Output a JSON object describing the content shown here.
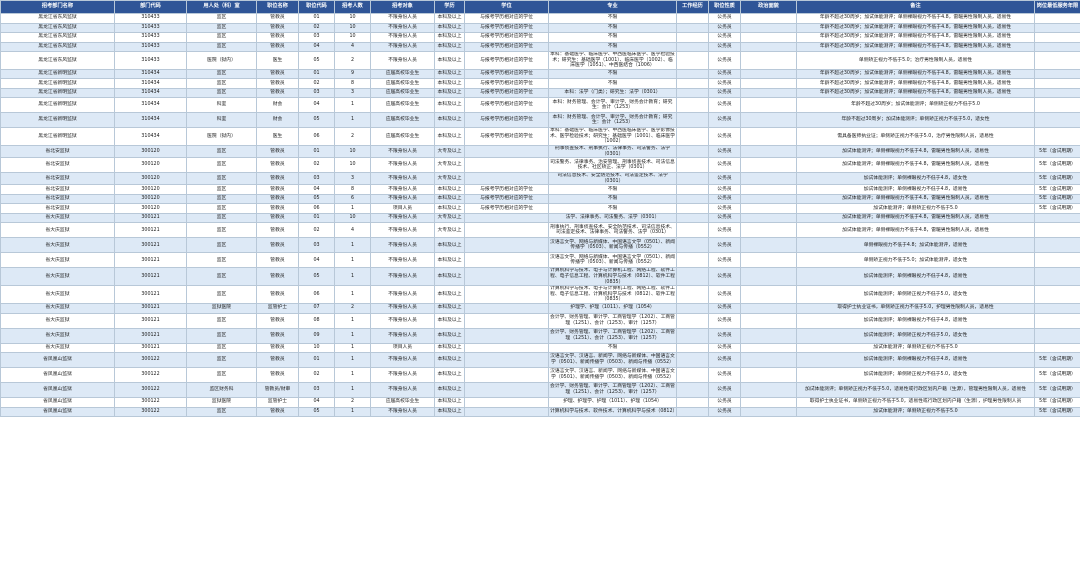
{
  "columns": [
    "招考部门名称",
    "部门代码",
    "用人处（科）室",
    "职位名称",
    "职位代码",
    "招考人数",
    "招考对象",
    "学历",
    "学位",
    "专业",
    "工作经历",
    "职位性质",
    "政治面貌",
    "备注",
    "岗位最低服务年限"
  ],
  "rows": [
    [
      "黑龙江省东风监狱",
      "310433",
      "监区",
      "管教员",
      "01",
      "10",
      "不限身份人员",
      "本科及以上",
      "与报考学历相对应的学位",
      "不限",
      "",
      "公务员",
      "",
      "年龄不超过30周岁；加试体能测评；单侧裸眼视力不低于4.8，雷暖男性限制人员，适易性",
      ""
    ],
    [
      "黑龙江省东风监狱",
      "310433",
      "监区",
      "管教员",
      "02",
      "10",
      "不限身份人员",
      "本科及以上",
      "与报考学历相对应的学位",
      "不限",
      "",
      "公务员",
      "",
      "年龄不超过30周岁；加试体能测评；单侧裸眼视力不低于4.8，雷暖男性限制人员，适易性",
      ""
    ],
    [
      "黑龙江省东风监狱",
      "310433",
      "监区",
      "管教员",
      "03",
      "10",
      "不限身份人员",
      "本科及以上",
      "与报考学历相对应的学位",
      "不限",
      "",
      "公务员",
      "",
      "年龄不超过30周岁；加试体能测评；单侧裸眼视力不低于4.8，雷暖男性限制人员，适易性",
      ""
    ],
    [
      "黑龙江省东风监狱",
      "310433",
      "监区",
      "管教员",
      "04",
      "4",
      "不限身份人员",
      "本科及以上",
      "与报考学历相对应的学位",
      "不限",
      "",
      "公务员",
      "",
      "年龄不超过30周岁；加试体能测评；单侧裸眼视力不低于4.8，雷暖男性限制人员，适易性",
      ""
    ],
    [
      "黑龙江省东风监狱",
      "310433",
      "医院（狱内）",
      "医生",
      "05",
      "2",
      "不限身份人员",
      "本科及以上",
      "与报考学历相对应的学位",
      "本科：基础医学、临床医学、中西医临床医学、医学检验技术；研究生：基础医学（1001）、临床医学（1002）、临床医学（1051）、中西医结合（1006）",
      "",
      "公务员",
      "",
      "单侧矫正视力不低于5.0；治疗男性限制人员，适易性",
      ""
    ],
    [
      "黑龙江省新明监狱",
      "310434",
      "监区",
      "管教员",
      "01",
      "9",
      "应届高校毕业生",
      "本科及以上",
      "与报考学历相对应的学位",
      "不限",
      "",
      "公务员",
      "",
      "年龄不超过30周岁；加试体能测评；单侧裸眼视力不低于4.8，雷暖男性限制人员，适易性",
      ""
    ],
    [
      "黑龙江省新明监狱",
      "310434",
      "监区",
      "管教员",
      "02",
      "8",
      "应届高校毕业生",
      "本科及以上",
      "与报考学历相对应的学位",
      "不限",
      "",
      "公务员",
      "",
      "年龄不超过30周岁；加试体能测评；单侧裸眼视力不低于4.8，雷暖男性限制人员，适易性",
      ""
    ],
    [
      "黑龙江省新明监狱",
      "310434",
      "监区",
      "管教员",
      "03",
      "3",
      "应届高校毕业生",
      "本科及以上",
      "与报考学历相对应的学位",
      "本科：法学（门类）；研究生：法学（0301）",
      "",
      "公务员",
      "",
      "年龄不超过30周岁；加试体能测评；单侧裸眼视力不低于4.8，雷暖男性限制人员，适易性",
      ""
    ],
    [
      "黑龙江省新明监狱",
      "310434",
      "科室",
      "财会",
      "04",
      "1",
      "应届高校毕业生",
      "本科及以上",
      "与报考学历相对应的学位",
      "本科：财务管理、会计学、审计学、财务会计教育；研究生：会计（1253）",
      "",
      "公务员",
      "",
      "年龄不超过30周岁；加试体能测评；单侧矫正视力不低于5.0",
      ""
    ],
    [
      "黑龙江省新明监狱",
      "310434",
      "科室",
      "财会",
      "05",
      "1",
      "应届高校毕业生",
      "本科及以上",
      "与报考学历相对应的学位",
      "本科：财务管理、会计学、审计学、财务会计教育；研究生：会计（1253）",
      "",
      "公务员",
      "",
      "年龄不超过30周岁；加试体能测评；单侧矫正视力不低于5.0，适女性",
      ""
    ],
    [
      "黑龙江省新明监狱",
      "310434",
      "医院（狱内）",
      "医生",
      "06",
      "2",
      "应届高校毕业生",
      "本科及以上",
      "与报考学历相对应的学位",
      "本科：基础医学、临床医学、中西医临床医学、医学影像技术、医学检验技术；研究生：基础医学（1001）、临床医学（1002）",
      "",
      "公务员",
      "",
      "需具备医师执业证；单侧矫正视力不低于5.0，治疗男性限制人员，适易性",
      ""
    ],
    [
      "省北安监狱",
      "300120",
      "监区",
      "管教员",
      "01",
      "10",
      "不限身份人员",
      "大专及以上",
      "",
      "刑事侦查技术、刑事执行、法律事务、司法警务、法学（0301）",
      "",
      "公务员",
      "",
      "加试体能测评；单侧裸眼视力不低于4.8，雷暖男性限制人员，适易性",
      "5年（含试用期）"
    ],
    [
      "省北安监狱",
      "300120",
      "监区",
      "管教员",
      "02",
      "10",
      "不限身份人员",
      "大专及以上",
      "",
      "司法警务、法律事务、治安管理、刑事侦查技术、司法信息技术、社区矫正、法学（0301）",
      "",
      "公务员",
      "",
      "加试体能测评；单侧裸眼视力不低于4.8，雷暖男性限制人员，适易性",
      "5年（含试用期）"
    ],
    [
      "省北安监狱",
      "300120",
      "监区",
      "管教员",
      "03",
      "3",
      "不限身份人员",
      "大专及以上",
      "",
      "司法信息技术、安全防范技术、司法鉴定技术、法学（0301）",
      "",
      "公务员",
      "",
      "加试体能测评；单侧裸眼视力不低于4.8，适女性",
      "5年（含试用期）"
    ],
    [
      "省北安监狱",
      "300120",
      "监区",
      "管教员",
      "04",
      "8",
      "不限身份人员",
      "本科及以上",
      "与报考学历相对应的学位",
      "不限",
      "",
      "公务员",
      "",
      "加试体能测评；单侧裸眼视力不低于4.8，适易性",
      "5年（含试用期）"
    ],
    [
      "省北安监狱",
      "300120",
      "监区",
      "管教员",
      "05",
      "6",
      "不限身份人员",
      "本科及以上",
      "与报考学历相对应的学位",
      "不限",
      "",
      "公务员",
      "",
      "加试体能测评；单侧裸眼视力不低于4.8，雷暖男性限制人员，适易性",
      "5年（含试用期）"
    ],
    [
      "省北安监狱",
      "300120",
      "监区",
      "管教员",
      "06",
      "1",
      "项目人员",
      "本科及以上",
      "与报考学历相对应的学位",
      "不限",
      "",
      "公务员",
      "",
      "加试体能测评；单侧矫正视力不低于5.0",
      "5年（含试用期）"
    ],
    [
      "省大庆监狱",
      "300121",
      "监区",
      "管教员",
      "01",
      "10",
      "不限身份人员",
      "大专及以上",
      "",
      "法学、法律事务、司法警务、法学（0301）",
      "",
      "公务员",
      "",
      "加试体能测评；单侧裸眼视力不低于4.8，雷暖男性限制人员，适易性",
      ""
    ],
    [
      "省大庆监狱",
      "300121",
      "监区",
      "管教员",
      "02",
      "4",
      "不限身份人员",
      "大专及以上",
      "",
      "刑事执行、刑事侦查技术、安全防范技术、司法信息技术、司法鉴定技术、法律事务、司法警务、法学（0301）",
      "",
      "公务员",
      "",
      "加试体能测评；单侧裸眼视力不低于4.8，雷暖男性限制人员，适易性",
      ""
    ],
    [
      "省大庆监狱",
      "300121",
      "监区",
      "管教员",
      "03",
      "1",
      "不限身份人员",
      "本科及以上",
      "",
      "汉语言文学、网络与新媒体、中国语言文学（0501）、新闻传播学（0503）、新闻与传播（0552）",
      "",
      "公务员",
      "",
      "单侧裸眼视力不低于4.8；加试体能测评，适易性",
      ""
    ],
    [
      "省大庆监狱",
      "300121",
      "监区",
      "管教员",
      "04",
      "1",
      "不限身份人员",
      "本科及以上",
      "",
      "汉语言文学、网络与新媒体、中国语言文学（0501）、新闻传播学（0503）、新闻与传播（0552）",
      "",
      "公务员",
      "",
      "单侧矫正视力不低于5.0；加试体能测评，适女性",
      ""
    ],
    [
      "省大庆监狱",
      "300121",
      "监区",
      "管教员",
      "05",
      "1",
      "不限身份人员",
      "本科及以上",
      "",
      "计算机科学与技术、电子与计算机工程、网络工程、软件工程、电子信息工程、计算机科学与技术（0812）、软件工程（0835）",
      "",
      "公务员",
      "",
      "加试体能测评；单侧裸眼视力不低于4.8，适易性",
      ""
    ],
    [
      "省大庆监狱",
      "300121",
      "监区",
      "管教员",
      "06",
      "1",
      "不限身份人员",
      "本科及以上",
      "",
      "计算机科学与技术、电子与计算机工程、网络工程、软件工程、电子信息工程、计算机科学与技术（0812）、软件工程（0835）",
      "",
      "公务员",
      "",
      "加试体能测评；单侧矫正视力不低于5.0，适女性",
      ""
    ],
    [
      "省大庆监狱",
      "300121",
      "监狱医院",
      "监管护士",
      "07",
      "2",
      "不限身份人员",
      "本科及以上",
      "",
      "护理学、护理（1011）、护理（1054）",
      "",
      "公务员",
      "",
      "取得护士执业证书，单侧矫正视力不低于5.0，护理男性限制人员，适易性",
      ""
    ],
    [
      "省大庆监狱",
      "300121",
      "监区",
      "管教员",
      "08",
      "1",
      "不限身份人员",
      "本科及以上",
      "",
      "会计学、财务管理、审计学、工商管理学（1202）、工商管理（1251）、会计（1253）、审计（1257）",
      "",
      "公务员",
      "",
      "加试体能测评；单侧裸眼视力不低于4.8，适易性",
      ""
    ],
    [
      "省大庆监狱",
      "300121",
      "监区",
      "管教员",
      "09",
      "1",
      "不限身份人员",
      "本科及以上",
      "",
      "会计学、财务管理、审计学、工商管理学（1202）、工商管理（1251）、会计（1253）、审计（1257）",
      "",
      "公务员",
      "",
      "加试体能测评；单侧矫正视力不低于5.0，适女性",
      ""
    ],
    [
      "省大庆监狱",
      "300121",
      "监区",
      "管教员",
      "10",
      "1",
      "项目人员",
      "本科及以上",
      "",
      "不限",
      "",
      "公务员",
      "",
      "加试体能测评；单侧矫正视力不低于5.0",
      ""
    ],
    [
      "省凤凰山监狱",
      "300122",
      "监区",
      "管教员",
      "01",
      "1",
      "不限身份人员",
      "本科及以上",
      "",
      "汉语言文学、汉语言、新闻学、网络与新媒体、中国语言文学（0501）、新闻传播学（0503）、新闻与传播（0552）",
      "",
      "公务员",
      "",
      "加试体能测评；单侧裸眼视力不低于4.8，适易性",
      "5年（含试用期）"
    ],
    [
      "省凤凰山监狱",
      "300122",
      "监区",
      "管教员",
      "02",
      "1",
      "不限身份人员",
      "本科及以上",
      "",
      "汉语言文学、汉语言、新闻学、网络与新媒体、中国语言文学（0501）、新闻传播学（0503）、新闻与传播（0552）",
      "",
      "公务员",
      "",
      "加试体能测评；单侧矫正视力不低于5.0，适女性",
      "5年（含试用期）"
    ],
    [
      "省凤凰山监狱",
      "300122",
      "监区财务科",
      "管教员/财审",
      "03",
      "1",
      "不限身份人员",
      "本科及以上",
      "",
      "会计学、财务管理、审计学、工商管理学（1202）、工商管理（1251）、会计（1253）、审计（1257）",
      "",
      "公务员",
      "",
      "加试体能测评；单侧矫正视力不低于5.0，适易性或行政区划内户籍（生源），管理男性限制人员，适易性",
      "5年（含试用期）"
    ],
    [
      "省凤凰山监狱",
      "300122",
      "监狱医院",
      "监管护士",
      "04",
      "2",
      "应届高校毕业生",
      "本科及以上",
      "",
      "护理、护理学、护理（1011）、护理（1054）",
      "",
      "公务员",
      "",
      "取得护士执业证书，单侧矫正视力不低于5.0，适易性或行政区划内户籍（生源），护理男性限制人员",
      "5年（含试用期）"
    ],
    [
      "省凤凰山监狱",
      "300122",
      "监区",
      "管教员",
      "05",
      "1",
      "不限身份人员",
      "本科及以上",
      "",
      "计算机科学与技术、软件技术、计算机科学与技术（0812）",
      "",
      "公务员",
      "",
      "加试体能测评；单侧矫正视力不低于5.0",
      "5年（含试用期）"
    ]
  ]
}
